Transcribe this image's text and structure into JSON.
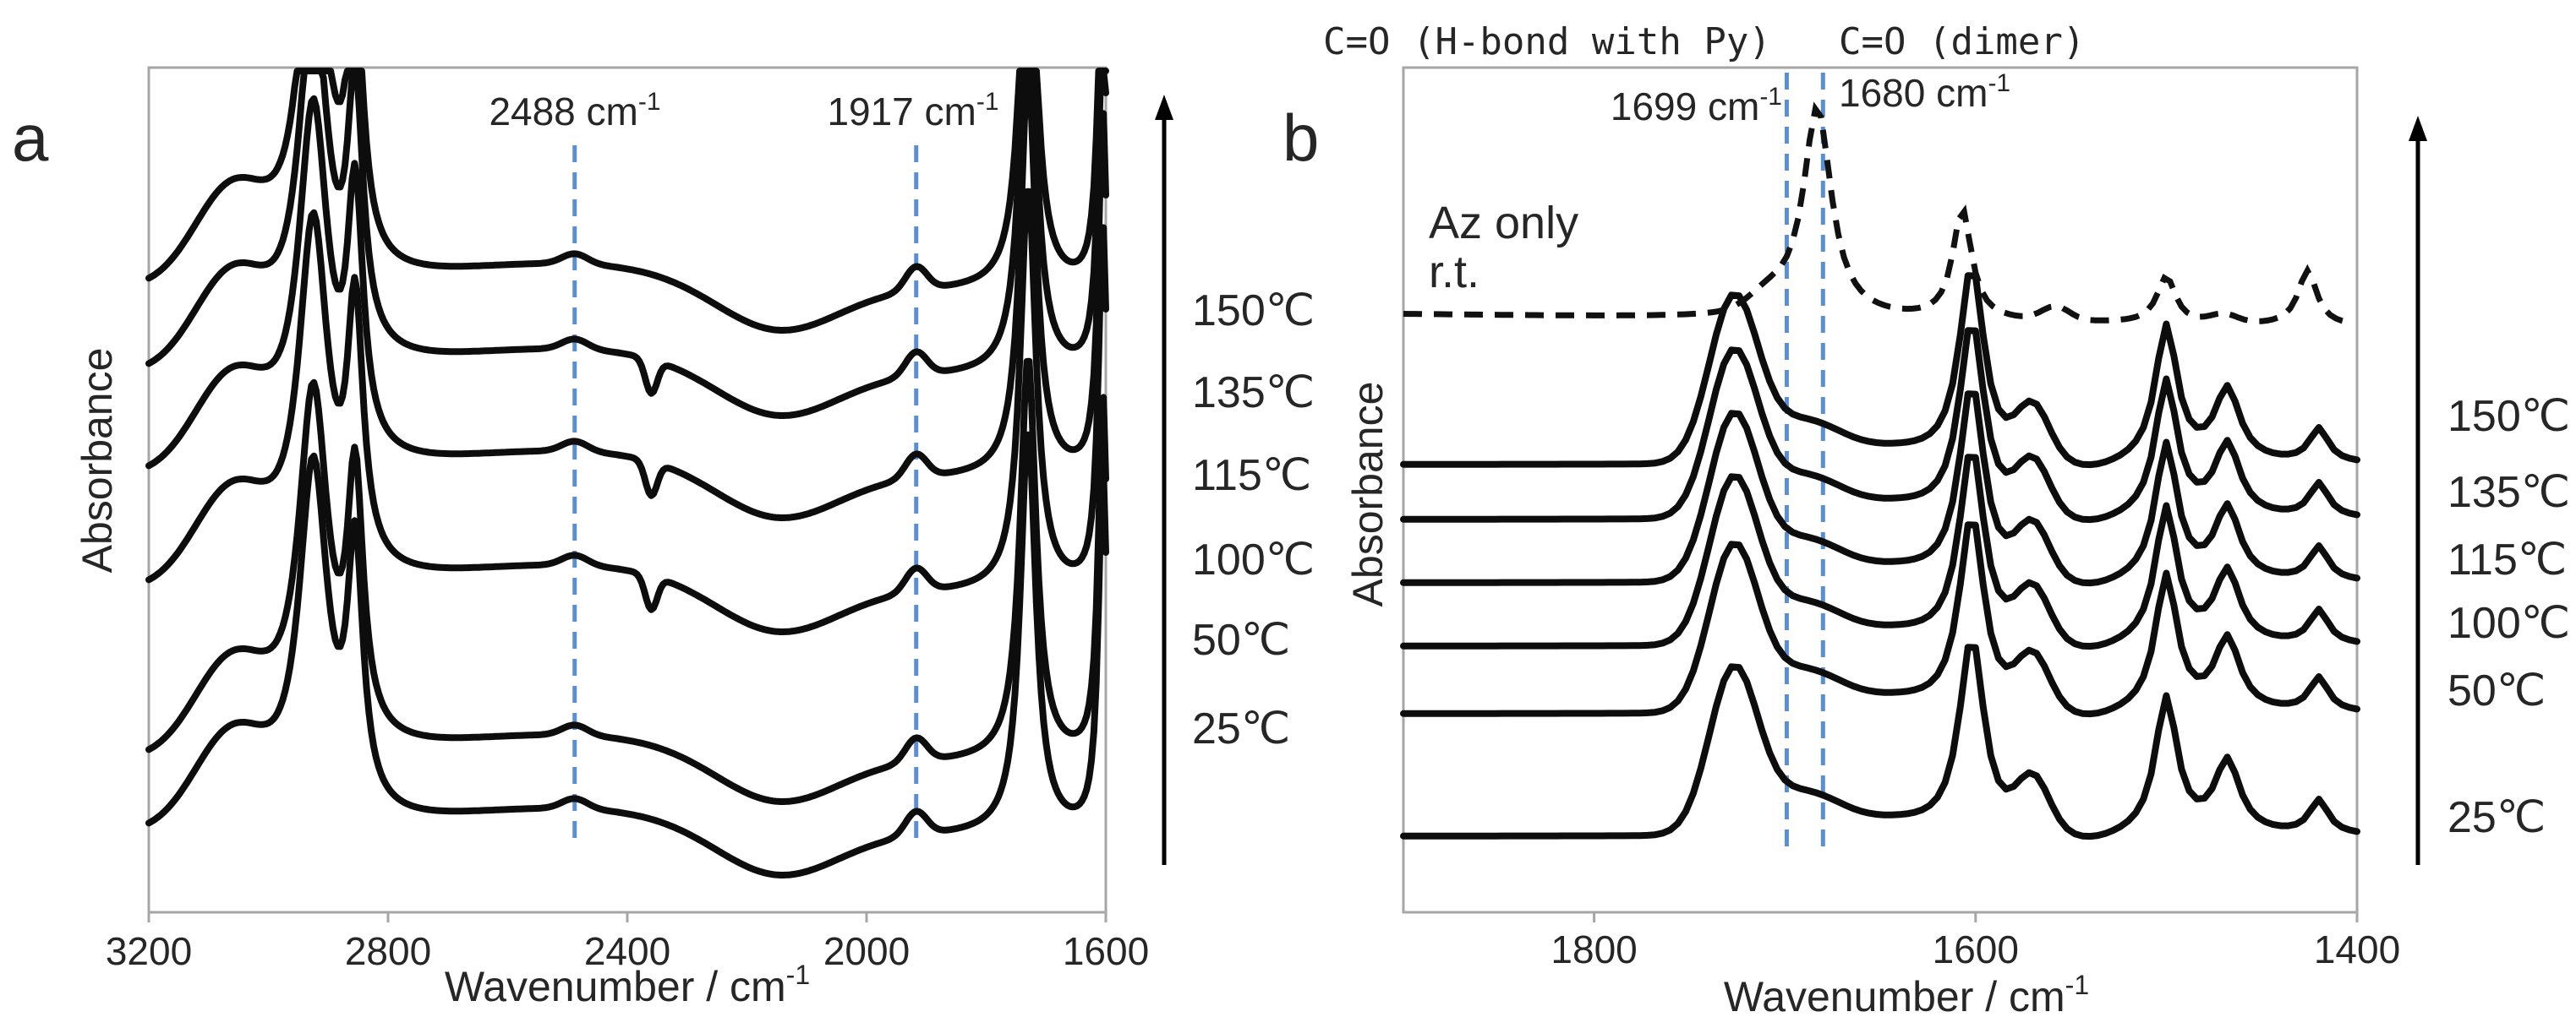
{
  "chart_data": [
    {
      "type": "line",
      "panel_label": "a",
      "xlabel": "Wavenumber / cm",
      "xlabel_sup": "-1",
      "ylabel": "Absorbance",
      "xlim": [
        3200,
        1600
      ],
      "x_ticks": [
        "3200",
        "2800",
        "2400",
        "2000",
        "1600"
      ],
      "tick_values": [
        3200,
        2800,
        2400,
        2000,
        1600
      ],
      "markers": [
        {
          "label": "2488 cm",
          "sup": "-1",
          "x": 2488
        },
        {
          "label": "1917 cm",
          "sup": "-1",
          "x": 1917
        }
      ],
      "series": [
        {
          "name": "150°C",
          "label": "150℃",
          "baseline": 1.0
        },
        {
          "name": "135°C",
          "label": "135℃",
          "baseline": 0.88
        },
        {
          "name": "115°C",
          "label": "115℃",
          "baseline": 0.74
        },
        {
          "name": "100°C",
          "label": "100℃",
          "baseline": 0.6
        },
        {
          "name": "50°C",
          "label": "50℃",
          "baseline": 0.44
        },
        {
          "name": "25°C",
          "label": "25℃",
          "baseline": 0.3
        }
      ]
    },
    {
      "type": "line",
      "panel_label": "b",
      "xlabel": "Wavenumber / cm",
      "xlabel_sup": "-1",
      "ylabel": "Absorbance",
      "xlim": [
        1900,
        1400
      ],
      "x_ticks": [
        "1800",
        "1600",
        "1400"
      ],
      "tick_values": [
        1800,
        1600,
        1400
      ],
      "top_annotations": [
        "C=O (H-bond with Py)",
        "C=O (dimer)"
      ],
      "markers": [
        {
          "label": "1699 cm",
          "sup": "-1",
          "x": 1699
        },
        {
          "label": "1680 cm",
          "sup": "-1",
          "x": 1680
        }
      ],
      "reference": {
        "name": "Az only r.t.",
        "line1": "Az only",
        "line2": "r.t.",
        "style": "dashed"
      },
      "series": [
        {
          "name": "150°C",
          "label": "150℃",
          "baseline": 1.0
        },
        {
          "name": "135°C",
          "label": "135℃",
          "baseline": 0.88
        },
        {
          "name": "115°C",
          "label": "115℃",
          "baseline": 0.76
        },
        {
          "name": "100°C",
          "label": "100℃",
          "baseline": 0.64
        },
        {
          "name": "50°C",
          "label": "50℃",
          "baseline": 0.5
        },
        {
          "name": "25°C",
          "label": "25℃",
          "baseline": 0.36
        }
      ]
    }
  ]
}
